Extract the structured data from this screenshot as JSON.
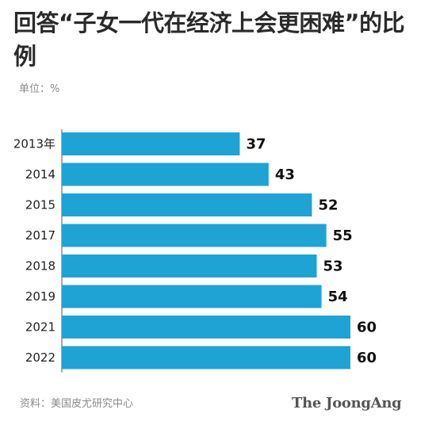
{
  "title": "回答“子女一代在经济上会更困难”的比例",
  "unit_label": "单位：%",
  "source_label": "资料：美国皮尤研究中心",
  "brand": "The JoongAng",
  "chart_data": {
    "type": "bar",
    "orientation": "horizontal",
    "categories": [
      "2013年",
      "2014",
      "2015",
      "2017",
      "2018",
      "2019",
      "2021",
      "2022"
    ],
    "values": [
      37,
      43,
      52,
      55,
      53,
      54,
      60,
      60
    ],
    "xlim": [
      0,
      60
    ],
    "bar_color": "#1fa3d4",
    "grid": false,
    "legend": "none"
  }
}
